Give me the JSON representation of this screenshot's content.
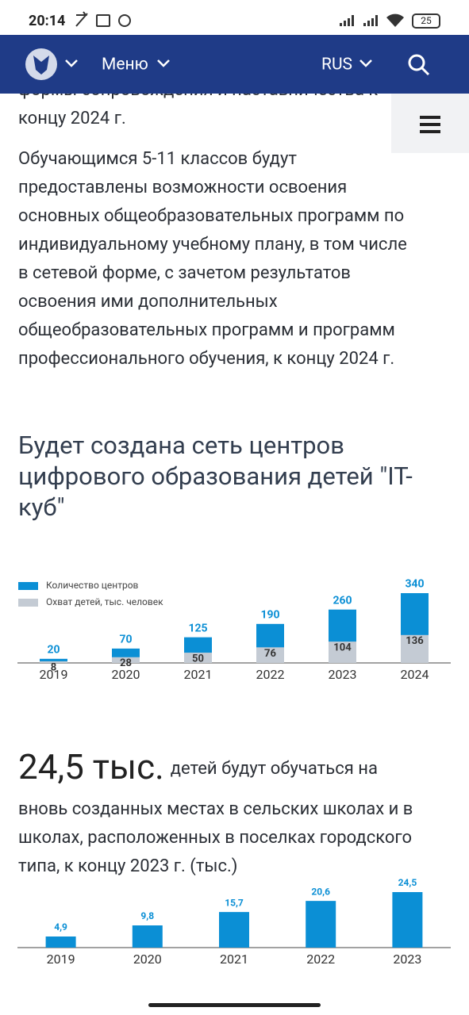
{
  "status_bar": {
    "time": "20:14",
    "battery": "25"
  },
  "nav": {
    "menu": "Меню",
    "language": "RUS"
  },
  "article": {
    "paragraph_1": [
      "формы сопровождения и наставничества к",
      "концу 2024 г."
    ],
    "paragraph_2": [
      "Обучающимся 5-11 классов будут",
      "предоставлены возможности освоения",
      "основных общеобразовательных программ по",
      "индивидуальному учебному плану, в том числе",
      "в сетевой форме, с зачетом результатов",
      "освоения ими дополнительных",
      "общеобразовательных программ и программ",
      "профессионального обучения, к концу 2024 г."
    ],
    "heading": [
      "Будет создана сеть центров",
      "цифрового образования детей \"IT-",
      "куб\""
    ],
    "highlight": {
      "number": "24,5 тыс.",
      "text_lines": [
        "детей будут обучаться на",
        "вновь созданных местах в сельских школах и в",
        "школах, расположенных в поселках городского",
        "типа, к концу 2023 г. (тыс.)"
      ]
    }
  },
  "chart_data": [
    {
      "type": "bar",
      "categories": [
        "2019",
        "2020",
        "2021",
        "2022",
        "2023",
        "2024"
      ],
      "series": [
        {
          "name": "Количество центров",
          "color": "#0b8fd5",
          "values": [
            20,
            70,
            125,
            190,
            260,
            340
          ]
        },
        {
          "name": "Охват детей, тыс. человек",
          "color": "#c4cbd4",
          "values": [
            8,
            28,
            50,
            76,
            104,
            136
          ]
        }
      ]
    },
    {
      "type": "bar",
      "categories": [
        "2019",
        "2020",
        "2021",
        "2022",
        "2023"
      ],
      "values": [
        4.9,
        9.8,
        15.7,
        20.6,
        24.5
      ],
      "value_labels": [
        "4,9",
        "9,8",
        "15,7",
        "20,6",
        "24,5"
      ],
      "color": "#0b8fd5"
    }
  ]
}
